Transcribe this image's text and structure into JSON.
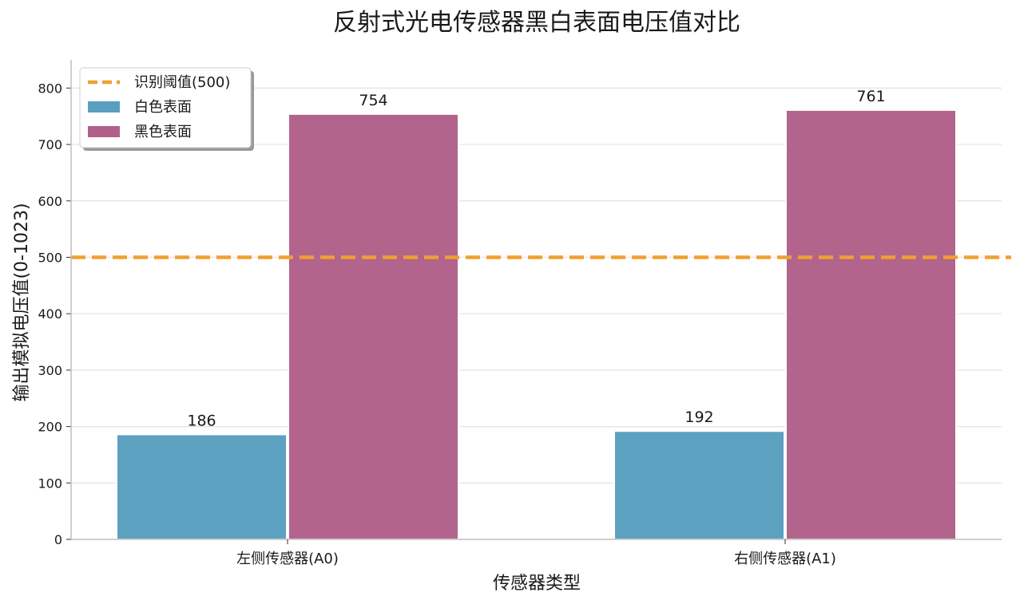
{
  "chart_data": {
    "type": "bar",
    "title": "反射式光电传感器黑白表面电压值对比",
    "xlabel": "传感器类型",
    "ylabel": "输出模拟电压值(0-1023)",
    "categories": [
      "左侧传感器(A0)",
      "右侧传感器(A1)"
    ],
    "series": [
      {
        "name": "白色表面",
        "values": [
          186,
          192
        ],
        "color": "#5a9fc0"
      },
      {
        "name": "黑色表面",
        "values": [
          754,
          761
        ],
        "color": "#b0618a"
      }
    ],
    "threshold": {
      "name": "识别阈值(500)",
      "value": 500,
      "color": "#f0a030",
      "style": "dashed"
    },
    "ylim": [
      0,
      850
    ],
    "yticks": [
      0,
      100,
      200,
      300,
      400,
      500,
      600,
      700,
      800
    ],
    "grid": "horizontal",
    "legend_position": "top-left",
    "data_labels": true
  }
}
